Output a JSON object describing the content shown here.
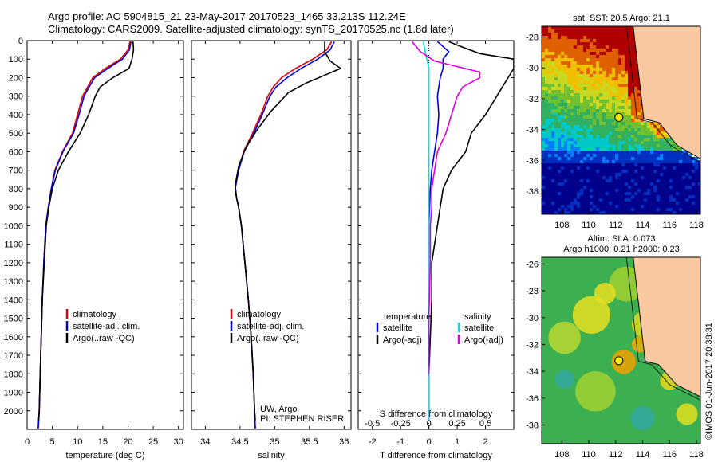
{
  "header": {
    "line1": "Argo profile: AO 5904815_21 23-May-2017 20170523_1465 33.213S 112.24E",
    "line2": "Climatology: CARS2009. Satellite-adjusted climatology: synTS_20170525.nc (1.8d later)"
  },
  "colors": {
    "climatology": "#e00000",
    "satellite": "#0000dd",
    "argo": "#000000",
    "salinity_sat": "#00e0e0",
    "salinity_argo": "#e000e0"
  },
  "credit": "©IMOS 01-Jun-2017 20:38:31",
  "chart_data": [
    {
      "id": "temperature",
      "type": "line",
      "xlabel": "temperature (deg C)",
      "xlim": [
        0,
        31
      ],
      "xticks": [
        "0",
        "5",
        "10",
        "15",
        "20",
        "25",
        "30"
      ],
      "ylim": [
        0,
        2100
      ],
      "yticks": [
        "0",
        "100",
        "200",
        "300",
        "400",
        "500",
        "600",
        "700",
        "800",
        "900",
        "1000",
        "1100",
        "1200",
        "1300",
        "1400",
        "1500",
        "1600",
        "1700",
        "1800",
        "1900",
        "2000"
      ],
      "legend": {
        "placement": "lower-middle",
        "entries": [
          "climatology",
          "satellite-adj. clim.",
          "Argo(..raw -QC)"
        ]
      },
      "series": [
        {
          "name": "climatology",
          "x": [
            20.4,
            20.0,
            18.5,
            15.5,
            13.0,
            12.0,
            11.0,
            10.0,
            9.0,
            7.0,
            5.5,
            4.8,
            4.2,
            3.7,
            3.3,
            3.0,
            2.8,
            2.6,
            2.5,
            2.4,
            2.3,
            2.2
          ],
          "y": [
            5,
            50,
            100,
            150,
            200,
            250,
            300,
            400,
            500,
            600,
            700,
            800,
            900,
            1000,
            1200,
            1400,
            1600,
            1800,
            1900,
            2000,
            2050,
            2095
          ]
        },
        {
          "name": "satellite-adj. clim.",
          "x": [
            20.6,
            20.3,
            18.9,
            16.0,
            13.4,
            12.3,
            11.3,
            10.3,
            9.2,
            7.1,
            5.6,
            4.8,
            4.2,
            3.7,
            3.3,
            3.0,
            2.8,
            2.6,
            2.5,
            2.4,
            2.3,
            2.2
          ],
          "y": [
            5,
            50,
            100,
            150,
            200,
            250,
            300,
            400,
            500,
            600,
            700,
            800,
            900,
            1000,
            1200,
            1400,
            1600,
            1800,
            1900,
            2000,
            2050,
            2095
          ]
        },
        {
          "name": "Argo(..raw -QC)",
          "x": [
            21.0,
            21.1,
            20.8,
            20.2,
            17.0,
            14.5,
            13.5,
            12.2,
            10.5,
            8.2,
            6.2,
            5.0,
            4.3,
            3.8,
            3.4,
            3.0,
            2.8,
            2.6,
            2.5,
            2.4,
            2.3
          ],
          "y": [
            5,
            50,
            100,
            150,
            200,
            250,
            300,
            400,
            500,
            600,
            700,
            800,
            900,
            1000,
            1200,
            1400,
            1600,
            1800,
            1900,
            2000,
            2050
          ]
        }
      ]
    },
    {
      "id": "salinity",
      "type": "line",
      "xlabel": "salinity",
      "xlim": [
        33.8,
        36.1
      ],
      "xticks": [
        "34",
        "34.5",
        "35",
        "35.5",
        "36"
      ],
      "ylim": [
        0,
        2100
      ],
      "legend": {
        "placement": "lower-middle",
        "entries": [
          "climatology",
          "satellite-adj. clim.",
          "Argo(..raw -QC)"
        ]
      },
      "annotation": [
        "UW, Argo",
        "PI: STEPHEN RISER"
      ],
      "series": [
        {
          "name": "climatology",
          "x": [
            35.82,
            35.75,
            35.55,
            35.3,
            35.1,
            34.98,
            34.9,
            34.8,
            34.68,
            34.55,
            34.48,
            34.43,
            34.45,
            34.48,
            34.52,
            34.57,
            34.62,
            34.66,
            34.69,
            34.71,
            34.72
          ],
          "y": [
            5,
            50,
            100,
            150,
            200,
            250,
            300,
            400,
            500,
            600,
            700,
            800,
            850,
            900,
            1000,
            1200,
            1400,
            1600,
            1800,
            2000,
            2095
          ]
        },
        {
          "name": "satellite-adj. clim.",
          "x": [
            35.86,
            35.8,
            35.62,
            35.38,
            35.18,
            35.02,
            34.93,
            34.82,
            34.7,
            34.56,
            34.48,
            34.43,
            34.45,
            34.48,
            34.52,
            34.57,
            34.62,
            34.66,
            34.69,
            34.71,
            34.72
          ],
          "y": [
            5,
            50,
            100,
            150,
            200,
            250,
            300,
            400,
            500,
            600,
            700,
            800,
            850,
            900,
            1000,
            1200,
            1400,
            1600,
            1800,
            2000,
            2095
          ]
        },
        {
          "name": "Argo(..raw -QC)",
          "x": [
            35.72,
            35.72,
            35.8,
            35.95,
            35.7,
            35.45,
            35.2,
            34.95,
            34.75,
            34.58,
            34.48,
            34.43,
            34.45,
            34.48,
            34.52,
            34.57,
            34.62,
            34.66,
            34.69,
            34.71,
            34.72
          ],
          "y": [
            5,
            60,
            110,
            150,
            190,
            230,
            280,
            380,
            480,
            580,
            680,
            780,
            850,
            900,
            1000,
            1200,
            1400,
            1600,
            1800,
            2000,
            2050
          ]
        }
      ]
    },
    {
      "id": "difference",
      "type": "line",
      "xlabel": "T difference from climatology",
      "xlabel2": "S difference from climatology",
      "xlim": [
        -2.5,
        3.0
      ],
      "xticks": [
        "-2",
        "-1",
        "0",
        "1",
        "2"
      ],
      "xticks_top": [
        "-0.5",
        "-0.25",
        "0",
        "0.25",
        "0.5"
      ],
      "ylim": [
        0,
        2100
      ],
      "legend": {
        "placement": "lower-middle",
        "temperature_header": "temperature",
        "salinity_header": "salinity",
        "entries": [
          "satellite",
          "Argo(-adj)",
          "satellite",
          "Argo(-adj)"
        ]
      },
      "series": [
        {
          "name": "temperature satellite",
          "x": [
            0.3,
            0.7,
            0.5,
            0.5,
            0.4,
            0.3,
            0.35,
            0.3,
            0.2,
            0.1,
            0.05,
            0,
            0,
            0,
            0,
            0,
            0
          ],
          "y": [
            5,
            60,
            100,
            150,
            200,
            300,
            400,
            500,
            600,
            700,
            800,
            1000,
            1200,
            1400,
            1600,
            1800,
            2050
          ]
        },
        {
          "name": "temperature Argo(-adj)",
          "x": [
            0.7,
            1.1,
            1.8,
            2.6,
            3.0,
            3.0,
            2.6,
            2.0,
            1.5,
            1.3,
            0.8,
            0.5,
            0.4,
            0.3,
            0.2,
            0.1,
            0.1,
            0.05,
            0,
            0
          ],
          "y": [
            5,
            30,
            70,
            90,
            100,
            150,
            250,
            400,
            500,
            600,
            700,
            800,
            900,
            1000,
            1100,
            1200,
            1400,
            1600,
            1800,
            2000
          ]
        },
        {
          "name": "salinity satellite",
          "x": [
            -0.2,
            -0.1,
            0,
            0,
            0,
            0,
            0,
            0,
            0,
            0,
            0,
            0,
            0,
            0
          ],
          "y": [
            5,
            80,
            150,
            200,
            300,
            400,
            600,
            800,
            900,
            1000,
            1300,
            1600,
            1800,
            2050
          ]
        },
        {
          "name": "salinity Argo(-adj)",
          "x": [
            -0.6,
            -0.3,
            0.2,
            1.8,
            1.8,
            1.2,
            1.0,
            0.8,
            0.6,
            0.3,
            0.2,
            0.1,
            0.1,
            0.05,
            0.05,
            0,
            0
          ],
          "y": [
            5,
            60,
            110,
            170,
            200,
            250,
            300,
            400,
            500,
            600,
            700,
            800,
            900,
            1000,
            1200,
            1500,
            1800
          ]
        }
      ]
    },
    {
      "id": "sst-map",
      "type": "heatmap",
      "title": "sat. SST: 20.5 Argo: 21.1",
      "xticks": [
        "108",
        "110",
        "112",
        "114",
        "116",
        "118"
      ],
      "yticks": [
        "-28",
        "-30",
        "-32",
        "-34",
        "-36",
        "-38"
      ],
      "xlim": [
        106.5,
        118.3
      ],
      "ylim": [
        -39.5,
        -27.3
      ],
      "argo_position": {
        "lon": 112.24,
        "lat": -33.213
      }
    },
    {
      "id": "sla-map",
      "type": "heatmap",
      "title": "Altim. SLA: 0.073",
      "title2": "Argo h1000: 0.21 h2000: 0.23",
      "xticks": [
        "108",
        "110",
        "112",
        "114",
        "116",
        "118"
      ],
      "yticks": [
        "-26",
        "-28",
        "-30",
        "-32",
        "-34",
        "-36",
        "-38"
      ],
      "xlim": [
        106.5,
        118.3
      ],
      "ylim": [
        -39.4,
        -25.5
      ],
      "argo_position": {
        "lon": 112.24,
        "lat": -33.213
      }
    }
  ]
}
